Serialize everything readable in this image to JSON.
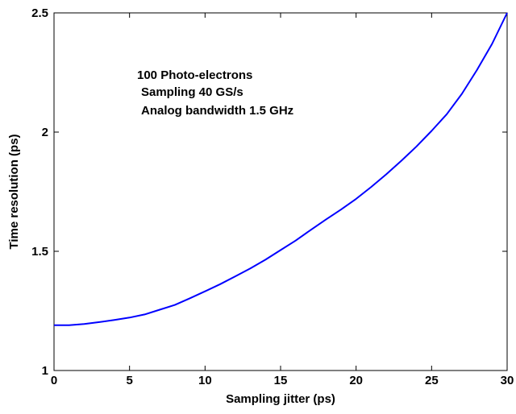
{
  "chart_data": {
    "type": "line",
    "title": "",
    "xlabel": "Sampling jitter (ps)",
    "ylabel": "Time resolution (ps)",
    "xlim": [
      0,
      30
    ],
    "ylim": [
      1,
      2.5
    ],
    "xticks": [
      0,
      5,
      10,
      15,
      20,
      25,
      30
    ],
    "yticks": [
      1,
      1.5,
      2,
      2.5
    ],
    "xtick_labels": [
      "0",
      "5",
      "10",
      "15",
      "20",
      "25",
      "30"
    ],
    "ytick_labels": [
      "1",
      "1.5",
      "2",
      "2.5"
    ],
    "grid": false,
    "annotations": [
      "100 Photo-electrons",
      "Sampling 40 GS/s",
      "Analog bandwidth 1.5 GHz"
    ],
    "series": [
      {
        "color": "#0000ff",
        "x": [
          0,
          1,
          2,
          3,
          4,
          5,
          6,
          7,
          8,
          9,
          10,
          11,
          12,
          13,
          14,
          15,
          16,
          17,
          18,
          19,
          20,
          21,
          22,
          23,
          24,
          25,
          26,
          27,
          28,
          29,
          30
        ],
        "y": [
          1.19,
          1.19,
          1.195,
          1.203,
          1.212,
          1.222,
          1.235,
          1.255,
          1.275,
          1.303,
          1.332,
          1.362,
          1.395,
          1.428,
          1.465,
          1.505,
          1.545,
          1.59,
          1.633,
          1.675,
          1.72,
          1.77,
          1.823,
          1.88,
          1.94,
          2.005,
          2.075,
          2.16,
          2.26,
          2.37,
          2.5
        ]
      }
    ]
  }
}
